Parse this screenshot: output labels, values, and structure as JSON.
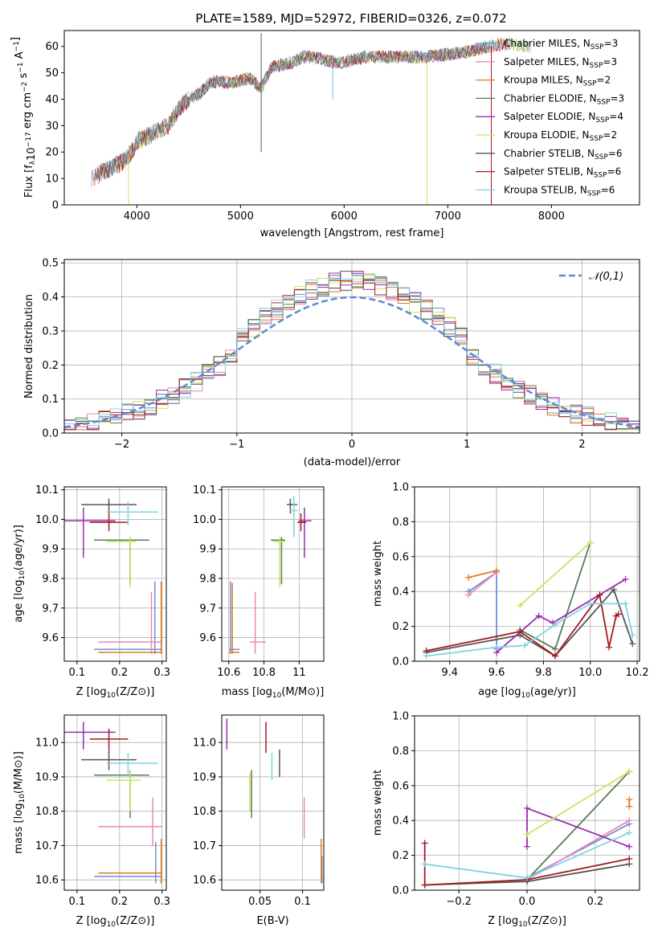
{
  "title": "PLATE=1589, MJD=52972, FIBERID=0326, z=0.072",
  "colors": {
    "Chabrier MILES": "#6f8fd6",
    "Salpeter MILES": "#e889b9",
    "Kroupa MILES": "#e07b20",
    "Chabrier ELODIE": "#557f55",
    "Salpeter ELODIE": "#9b2bb0",
    "Kroupa ELODIE": "#cde35a",
    "Chabrier STELIB": "#555555",
    "Salpeter STELIB": "#a31a21",
    "Kroupa STELIB": "#7fd3e0",
    "normal_curve": "#5b8ad6",
    "grid": "#b0b0b0"
  },
  "chart_data": [
    {
      "id": "spectrum",
      "type": "line",
      "xlabel": "wavelength [Angstrom, rest frame]",
      "ylabel": "Flux [f_λ 10^-17 erg cm^-2 s^-1 A^-1]",
      "xlim": [
        3300,
        8850
      ],
      "ylim": [
        0,
        66
      ],
      "xticks": [
        4000,
        5000,
        6000,
        7000,
        8000
      ],
      "yticks": [
        0,
        10,
        20,
        30,
        40,
        50,
        60
      ],
      "grid": false,
      "legend_position": "right",
      "legend": [
        {
          "label": "Chabrier MILES, N_SSP=3",
          "base": "Chabrier MILES, N",
          "sub": "SSP",
          "tail": "=3"
        },
        {
          "label": "Salpeter MILES, N_SSP=3",
          "base": "Salpeter MILES, N",
          "sub": "SSP",
          "tail": "=3"
        },
        {
          "label": "Kroupa MILES, N_SSP=2",
          "base": "Kroupa MILES, N",
          "sub": "SSP",
          "tail": "=2"
        },
        {
          "label": "Chabrier ELODIE, N_SSP=3",
          "base": "Chabrier ELODIE, N",
          "sub": "SSP",
          "tail": "=3"
        },
        {
          "label": "Salpeter ELODIE, N_SSP=4",
          "base": "Salpeter ELODIE, N",
          "sub": "SSP",
          "tail": "=4"
        },
        {
          "label": "Kroupa ELODIE, N_SSP=2",
          "base": "Kroupa ELODIE, N",
          "sub": "SSP",
          "tail": "=2"
        },
        {
          "label": "Chabrier STELIB, N_SSP=6",
          "base": "Chabrier STELIB, N",
          "sub": "SSP",
          "tail": "=6"
        },
        {
          "label": "Salpeter STELIB, N_SSP=6",
          "base": "Salpeter STELIB, N",
          "sub": "SSP",
          "tail": "=6"
        },
        {
          "label": "Kroupa STELIB, N_SSP=6",
          "base": "Kroupa STELIB, N",
          "sub": "SSP",
          "tail": "=6"
        }
      ],
      "continuum": {
        "x": [
          3560,
          3650,
          3750,
          3850,
          3950,
          4000,
          4100,
          4200,
          4300,
          4400,
          4500,
          4600,
          4700,
          4800,
          4900,
          5000,
          5100,
          5200,
          5300,
          5400,
          5500,
          5600,
          5700,
          5800,
          5900,
          6000,
          6200,
          6400,
          6600,
          6800,
          7000,
          7200,
          7400,
          7600,
          7800
        ],
        "y": [
          10,
          12,
          14,
          16,
          20,
          24,
          26,
          28,
          30,
          36,
          40,
          42,
          46,
          47,
          46,
          47,
          48,
          44,
          52,
          53,
          54,
          56,
          56,
          55,
          54,
          54,
          56,
          56,
          56,
          56,
          57,
          58,
          60,
          61,
          60
        ]
      },
      "spikes": [
        {
          "x": 3920,
          "ymin": 0,
          "series": "Kroupa ELODIE"
        },
        {
          "x": 5200,
          "ymin": 20,
          "ymax": 65,
          "series": "Chabrier STELIB"
        },
        {
          "x": 6800,
          "ymin": 0,
          "series": "Kroupa ELODIE"
        },
        {
          "x": 7420,
          "ymin": 0,
          "series": "Salpeter STELIB"
        }
      ]
    },
    {
      "id": "residuals",
      "type": "histogram",
      "xlabel": "(data-model)/error",
      "ylabel": "Normed distribution",
      "xlim": [
        -2.5,
        2.5
      ],
      "ylim": [
        0,
        0.51
      ],
      "xticks": [
        -2,
        -1,
        0,
        1,
        2
      ],
      "yticks": [
        0.0,
        0.1,
        0.2,
        0.3,
        0.4,
        0.5
      ],
      "grid": true,
      "legend_position": "top-right",
      "legend_label": "𝒩(0,1)",
      "bin_edges_start": -2.5,
      "bin_width": 0.1,
      "bins": 50,
      "normal_curve": {
        "mean": 0,
        "sigma": 1
      }
    },
    {
      "id": "age-vs-Z",
      "type": "errorbar",
      "xlabel_base": "Z [log",
      "xlabel_sub": "10",
      "xlabel_tail": "(Z/Z⊙)]",
      "ylabel_base": "age  [log",
      "ylabel_sub": "10",
      "ylabel_tail": "(age/yr)]",
      "xlim": [
        0.07,
        0.31
      ],
      "ylim": [
        9.52,
        10.11
      ],
      "xticks": [
        0.1,
        0.2,
        0.3
      ],
      "yticks": [
        9.6,
        9.7,
        9.8,
        9.9,
        10.0,
        10.1
      ],
      "points": [
        {
          "series": "Chabrier MILES",
          "x": 0.283,
          "xerr": [
            0.14,
            0.3
          ],
          "y": 9.56,
          "yerr": [
            9.545,
            9.79
          ]
        },
        {
          "series": "Salpeter MILES",
          "x": 0.275,
          "xerr": [
            0.15,
            0.3
          ],
          "y": 9.585,
          "yerr": [
            9.545,
            9.755
          ]
        },
        {
          "series": "Kroupa MILES",
          "x": 0.298,
          "xerr": [
            0.15,
            0.3
          ],
          "y": 9.55,
          "yerr": [
            9.545,
            9.79
          ]
        },
        {
          "series": "Chabrier ELODIE",
          "x": 0.225,
          "xerr": [
            0.14,
            0.27
          ],
          "y": 9.93,
          "yerr": [
            9.78,
            9.94
          ]
        },
        {
          "series": "Salpeter ELODIE",
          "x": 0.115,
          "xerr": [
            0.07,
            0.19
          ],
          "y": 9.995,
          "yerr": [
            9.87,
            10.04
          ]
        },
        {
          "series": "Kroupa ELODIE",
          "x": 0.225,
          "xerr": [
            0.17,
            0.24
          ],
          "y": 9.925,
          "yerr": [
            9.77,
            9.94
          ]
        },
        {
          "series": "Chabrier STELIB",
          "x": 0.175,
          "xerr": [
            0.11,
            0.24
          ],
          "y": 10.05,
          "yerr": [
            10.02,
            10.07
          ]
        },
        {
          "series": "Salpeter STELIB",
          "x": 0.175,
          "xerr": [
            0.13,
            0.22
          ],
          "y": 9.99,
          "yerr": [
            9.96,
            10.02
          ]
        },
        {
          "series": "Kroupa STELIB",
          "x": 0.22,
          "xerr": [
            0.17,
            0.29
          ],
          "y": 10.025,
          "yerr": [
            9.98,
            10.06
          ]
        }
      ]
    },
    {
      "id": "age-vs-mass",
      "type": "errorbar",
      "xlabel_base": "mass [log",
      "xlabel_sub": "10",
      "xlabel_tail": "(M/M⊙)]",
      "xlim": [
        10.56,
        11.14
      ],
      "ylim": [
        9.52,
        10.11
      ],
      "xticks": [
        10.6,
        10.8,
        11.0
      ],
      "yticks": [
        9.6,
        9.7,
        9.8,
        9.9,
        10.0,
        10.1
      ],
      "points": [
        {
          "series": "Chabrier MILES",
          "x": 10.61,
          "xerr": [
            10.6,
            10.66
          ],
          "y": 9.56,
          "yerr": [
            9.545,
            9.79
          ]
        },
        {
          "series": "Salpeter MILES",
          "x": 10.75,
          "xerr": [
            10.72,
            10.81
          ],
          "y": 9.585,
          "yerr": [
            9.545,
            9.755
          ]
        },
        {
          "series": "Kroupa MILES",
          "x": 10.62,
          "xerr": [
            10.6,
            10.66
          ],
          "y": 9.55,
          "yerr": [
            9.545,
            9.785
          ]
        },
        {
          "series": "Chabrier ELODIE",
          "x": 10.9,
          "xerr": [
            10.84,
            10.92
          ],
          "y": 9.93,
          "yerr": [
            9.78,
            9.94
          ]
        },
        {
          "series": "Salpeter ELODIE",
          "x": 11.03,
          "xerr": [
            11.0,
            11.07
          ],
          "y": 9.995,
          "yerr": [
            9.87,
            10.04
          ]
        },
        {
          "series": "Kroupa ELODIE",
          "x": 10.89,
          "xerr": [
            10.85,
            10.92
          ],
          "y": 9.925,
          "yerr": [
            9.77,
            9.94
          ]
        },
        {
          "series": "Chabrier STELIB",
          "x": 10.95,
          "xerr": [
            10.93,
            10.99
          ],
          "y": 10.05,
          "yerr": [
            10.02,
            10.07
          ]
        },
        {
          "series": "Salpeter STELIB",
          "x": 11.01,
          "xerr": [
            10.99,
            11.04
          ],
          "y": 9.99,
          "yerr": [
            9.96,
            10.02
          ]
        },
        {
          "series": "Kroupa STELIB",
          "x": 10.97,
          "xerr": [
            10.95,
            10.99
          ],
          "y": 10.03,
          "yerr": [
            9.94,
            10.08
          ]
        }
      ]
    },
    {
      "id": "mass-weight-vs-age",
      "type": "line",
      "xlabel_base": "age  [log",
      "xlabel_sub": "10",
      "xlabel_tail": "(age/yr)]",
      "ylabel": "mass weight",
      "xlim": [
        9.25,
        10.21
      ],
      "ylim": [
        0,
        1
      ],
      "xticks": [
        9.4,
        9.6,
        9.8,
        10.0,
        10.2
      ],
      "yticks": [
        0.0,
        0.2,
        0.4,
        0.6,
        0.8,
        1.0
      ],
      "grid": true,
      "series": [
        {
          "name": "Chabrier MILES",
          "x": [
            9.6,
            9.6,
            9.48
          ],
          "y": [
            0.07,
            0.51,
            0.4
          ]
        },
        {
          "name": "Salpeter MILES",
          "x": [
            9.6,
            9.48
          ],
          "y": [
            0.51,
            0.38
          ]
        },
        {
          "name": "Kroupa MILES",
          "x": [
            9.48,
            9.6
          ],
          "y": [
            0.48,
            0.52
          ]
        },
        {
          "name": "Chabrier ELODIE",
          "x": [
            9.7,
            9.85,
            10.0
          ],
          "y": [
            0.18,
            0.07,
            0.68
          ]
        },
        {
          "name": "Salpeter ELODIE",
          "x": [
            9.6,
            9.78,
            9.84,
            10.15
          ],
          "y": [
            0.05,
            0.26,
            0.22,
            0.47
          ]
        },
        {
          "name": "Kroupa ELODIE",
          "x": [
            9.7,
            10.0
          ],
          "y": [
            0.32,
            0.68
          ]
        },
        {
          "name": "Chabrier STELIB",
          "x": [
            9.3,
            9.7,
            9.85,
            10.1,
            10.18
          ],
          "y": [
            0.05,
            0.15,
            0.03,
            0.41,
            0.1
          ]
        },
        {
          "name": "Salpeter STELIB",
          "x": [
            9.3,
            9.7,
            9.85,
            10.04,
            10.08,
            10.11,
            10.12
          ],
          "y": [
            0.06,
            0.17,
            0.03,
            0.38,
            0.08,
            0.26,
            0.27
          ]
        },
        {
          "name": "Kroupa STELIB",
          "x": [
            9.3,
            9.6,
            9.72,
            9.85,
            10.0,
            10.15,
            10.18
          ],
          "y": [
            0.03,
            0.08,
            0.09,
            0.21,
            0.33,
            0.33,
            0.15
          ]
        }
      ]
    },
    {
      "id": "mass-vs-Z",
      "type": "errorbar",
      "xlabel_base": "Z [log",
      "xlabel_sub": "10",
      "xlabel_tail": "(Z/Z⊙)]",
      "ylabel_base": "mass [log",
      "ylabel_sub": "10",
      "ylabel_tail": "(M/M⊙)]",
      "xlim": [
        0.07,
        0.31
      ],
      "ylim": [
        10.57,
        11.08
      ],
      "xticks": [
        0.1,
        0.2,
        0.3
      ],
      "yticks": [
        10.6,
        10.7,
        10.8,
        10.9,
        11.0
      ],
      "points": [
        {
          "series": "Chabrier MILES",
          "x": 0.285,
          "xerr": [
            0.14,
            0.3
          ],
          "y": 10.61,
          "yerr": [
            10.59,
            10.71
          ]
        },
        {
          "series": "Salpeter MILES",
          "x": 0.278,
          "xerr": [
            0.15,
            0.3
          ],
          "y": 10.755,
          "yerr": [
            10.7,
            10.84
          ]
        },
        {
          "series": "Kroupa MILES",
          "x": 0.298,
          "xerr": [
            0.15,
            0.3
          ],
          "y": 10.62,
          "yerr": [
            10.59,
            10.72
          ]
        },
        {
          "series": "Chabrier ELODIE",
          "x": 0.225,
          "xerr": [
            0.14,
            0.27
          ],
          "y": 10.905,
          "yerr": [
            10.78,
            10.92
          ]
        },
        {
          "series": "Salpeter ELODIE",
          "x": 0.115,
          "xerr": [
            0.07,
            0.19
          ],
          "y": 11.03,
          "yerr": [
            10.98,
            11.06
          ]
        },
        {
          "series": "Kroupa ELODIE",
          "x": 0.225,
          "xerr": [
            0.17,
            0.25
          ],
          "y": 10.89,
          "yerr": [
            10.8,
            10.92
          ]
        },
        {
          "series": "Chabrier STELIB",
          "x": 0.175,
          "xerr": [
            0.11,
            0.24
          ],
          "y": 10.95,
          "yerr": [
            10.92,
            10.98
          ]
        },
        {
          "series": "Salpeter STELIB",
          "x": 0.175,
          "xerr": [
            0.13,
            0.22
          ],
          "y": 11.01,
          "yerr": [
            10.98,
            11.04
          ]
        },
        {
          "series": "Kroupa STELIB",
          "x": 0.22,
          "xerr": [
            0.17,
            0.29
          ],
          "y": 10.94,
          "yerr": [
            10.9,
            10.97
          ]
        }
      ]
    },
    {
      "id": "mass-vs-ebv",
      "type": "errorbar",
      "xlabel": "E(B-V)",
      "xlim": [
        0.005,
        0.125
      ],
      "ylim": [
        10.57,
        11.08
      ],
      "xticks": [
        0.05,
        0.1
      ],
      "yticks": [
        10.6,
        10.7,
        10.8,
        10.9,
        11.0
      ],
      "points": [
        {
          "series": "Chabrier MILES",
          "x": 0.123,
          "y": 10.61,
          "yerr": [
            10.59,
            10.67
          ]
        },
        {
          "series": "Salpeter MILES",
          "x": 0.102,
          "y": 10.77,
          "yerr": [
            10.72,
            10.84
          ]
        },
        {
          "series": "Kroupa MILES",
          "x": 0.122,
          "y": 10.62,
          "yerr": [
            10.59,
            10.72
          ]
        },
        {
          "series": "Chabrier ELODIE",
          "x": 0.04,
          "y": 10.85,
          "yerr": [
            10.78,
            10.92
          ]
        },
        {
          "series": "Salpeter ELODIE",
          "x": 0.011,
          "y": 11.03,
          "yerr": [
            10.98,
            11.07
          ]
        },
        {
          "series": "Kroupa ELODIE",
          "x": 0.038,
          "y": 10.85,
          "yerr": [
            10.8,
            10.91
          ]
        },
        {
          "series": "Chabrier STELIB",
          "x": 0.073,
          "y": 10.94,
          "yerr": [
            10.9,
            10.98
          ]
        },
        {
          "series": "Salpeter STELIB",
          "x": 0.057,
          "y": 11.03,
          "yerr": [
            10.97,
            11.06
          ]
        },
        {
          "series": "Kroupa STELIB",
          "x": 0.064,
          "y": 10.93,
          "yerr": [
            10.89,
            10.97
          ]
        }
      ]
    },
    {
      "id": "mass-weight-vs-Z",
      "type": "line",
      "xlabel_base": "Z [log",
      "xlabel_sub": "10",
      "xlabel_tail": "(Z/Z⊙)]",
      "ylabel": "mass weight",
      "xlim": [
        -0.33,
        0.33
      ],
      "ylim": [
        0,
        1
      ],
      "xticks": [
        -0.2,
        0.0,
        0.2
      ],
      "yticks": [
        0.0,
        0.2,
        0.4,
        0.6,
        0.8,
        1.0
      ],
      "grid": true,
      "series": [
        {
          "name": "Chabrier MILES",
          "x": [
            0.0,
            0.3
          ],
          "y": [
            0.07,
            0.38
          ]
        },
        {
          "name": "Salpeter MILES",
          "x": [
            0.0,
            0.3
          ],
          "y": [
            0.06,
            0.4
          ]
        },
        {
          "name": "Kroupa MILES",
          "x": [
            0.3,
            0.3
          ],
          "y": [
            0.48,
            0.52
          ]
        },
        {
          "name": "Chabrier ELODIE",
          "x": [
            0.0,
            0.3
          ],
          "y": [
            0.06,
            0.68
          ]
        },
        {
          "name": "Salpeter ELODIE",
          "x": [
            0.0,
            0.0,
            0.3
          ],
          "y": [
            0.25,
            0.47,
            0.25
          ]
        },
        {
          "name": "Kroupa ELODIE",
          "x": [
            0.0,
            0.3
          ],
          "y": [
            0.32,
            0.68
          ]
        },
        {
          "name": "Chabrier STELIB",
          "x": [
            -0.3,
            0.0,
            0.3
          ],
          "y": [
            0.03,
            0.05,
            0.15
          ]
        },
        {
          "name": "Salpeter STELIB",
          "x": [
            -0.3,
            -0.3,
            0.0,
            0.3
          ],
          "y": [
            0.27,
            0.03,
            0.06,
            0.18
          ]
        },
        {
          "name": "Kroupa STELIB",
          "x": [
            -0.3,
            0.0,
            0.3
          ],
          "y": [
            0.15,
            0.07,
            0.33
          ]
        }
      ]
    }
  ]
}
